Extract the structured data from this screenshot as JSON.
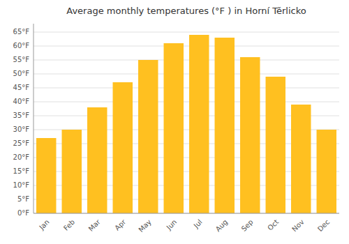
{
  "chart_data": {
    "type": "bar",
    "title": "Average monthly temperatures (°F ) in Horní Těrlicko",
    "categories": [
      "Jan",
      "Feb",
      "Mar",
      "Apr",
      "May",
      "Jun",
      "Jul",
      "Aug",
      "Sep",
      "Oct",
      "Nov",
      "Dec"
    ],
    "values": [
      27,
      30,
      38,
      47,
      55,
      61,
      64,
      63,
      56,
      49,
      39,
      30
    ],
    "color": "#FFC020",
    "ylim": [
      0,
      68
    ],
    "yticks": [
      {
        "value": 0,
        "label": "0°F"
      },
      {
        "value": 5,
        "label": "5°F"
      },
      {
        "value": 10,
        "label": "10°F"
      },
      {
        "value": 15,
        "label": "15°F"
      },
      {
        "value": 20,
        "label": "20°F"
      },
      {
        "value": 25,
        "label": "25°F"
      },
      {
        "value": 30,
        "label": "30°F"
      },
      {
        "value": 35,
        "label": "35°F"
      },
      {
        "value": 40,
        "label": "40°F"
      },
      {
        "value": 45,
        "label": "45°F"
      },
      {
        "value": 50,
        "label": "50°F"
      },
      {
        "value": 55,
        "label": "55°F"
      },
      {
        "value": 60,
        "label": "60°F"
      },
      {
        "value": 65,
        "label": "65°F"
      }
    ],
    "grid": true
  }
}
